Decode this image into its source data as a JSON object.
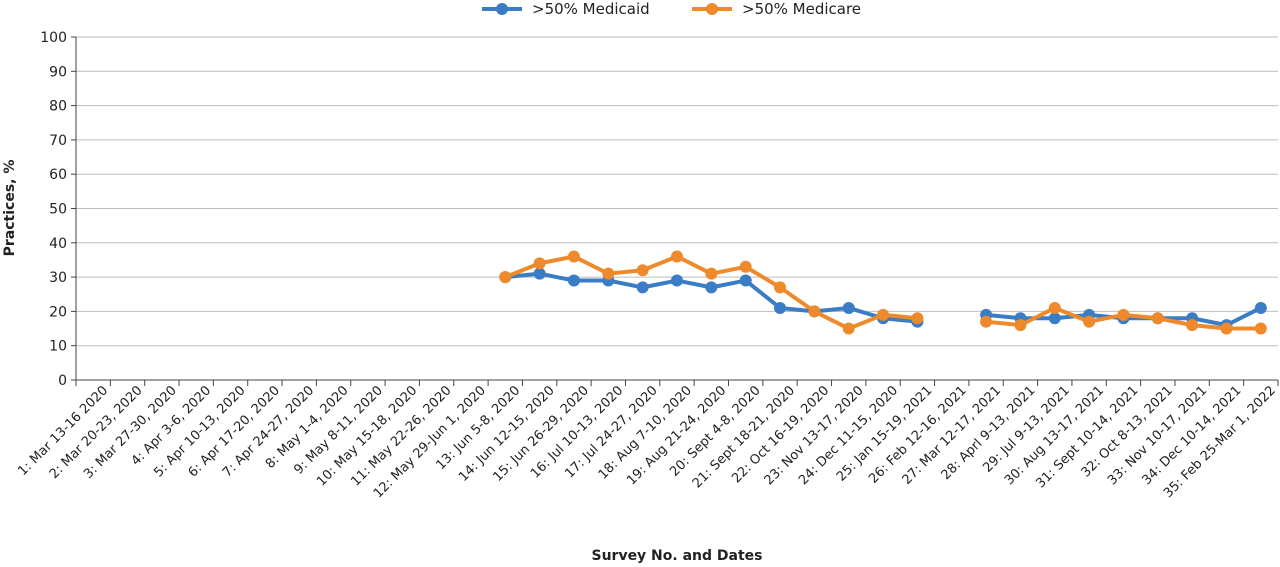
{
  "chart_data": {
    "type": "line",
    "title": "",
    "xlabel": "Survey No. and Dates",
    "ylabel": "Practices, %",
    "ylim": [
      0,
      100
    ],
    "yticks": [
      0,
      10,
      20,
      30,
      40,
      50,
      60,
      70,
      80,
      90,
      100
    ],
    "grid": true,
    "legend_position": "top-center",
    "categories": [
      "1: Mar 13-16 2020",
      "2: Mar 20-23, 2020",
      "3: Mar 27-30, 2020",
      "4: Apr 3-6, 2020",
      "5: Apr 10-13, 2020",
      "6: Apr 17-20, 2020",
      "7: Apr 24-27, 2020",
      "8: May 1-4, 2020",
      "9: May 8-11, 2020",
      "10: May 15-18, 2020",
      "11: May 22-26, 2020",
      "12: May 29-Jun 1, 2020",
      "13: Jun 5-8, 2020",
      "14: Jun 12-15, 2020",
      "15: Jun 26-29, 2020",
      "16: Jul 10-13, 2020",
      "17: Jul 24-27, 2020",
      "18: Aug 7-10, 2020",
      "19: Aug 21-24, 2020",
      "20: Sept 4-8, 2020",
      "21: Sept 18-21, 2020",
      "22: Oct 16-19, 2020",
      "23: Nov 13-17, 2020",
      "24: Dec 11-15, 2020",
      "25: Jan 15-19, 2021",
      "26: Feb 12-16, 2021",
      "27: Mar 12-17, 2021",
      "28: Aprl 9-13, 2021",
      "29: Jul 9-13, 2021",
      "30: Aug 13-17, 2021",
      "31: Sept 10-14, 2021",
      "32: Oct 8-13, 2021",
      "33: Nov 10-17, 2021",
      "34: Dec 10-14, 2021",
      "35: Feb 25-Mar 1, 2022"
    ],
    "series": [
      {
        "name": ">50% Medicaid",
        "color": "#3b7dc4",
        "values": [
          null,
          null,
          null,
          null,
          null,
          null,
          null,
          null,
          null,
          null,
          null,
          null,
          30,
          31,
          29,
          29,
          27,
          29,
          27,
          29,
          21,
          20,
          21,
          18,
          17,
          null,
          19,
          18,
          18,
          19,
          18,
          18,
          18,
          16,
          21
        ]
      },
      {
        "name": ">50% Medicare",
        "color": "#ee8a2b",
        "values": [
          null,
          null,
          null,
          null,
          null,
          null,
          null,
          null,
          null,
          null,
          null,
          null,
          30,
          34,
          36,
          31,
          32,
          36,
          31,
          33,
          27,
          20,
          15,
          19,
          18,
          null,
          17,
          16,
          21,
          17,
          19,
          18,
          16,
          15,
          15
        ]
      }
    ]
  }
}
